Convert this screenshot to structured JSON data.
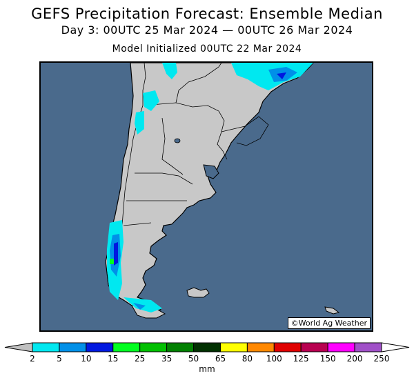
{
  "title": "GEFS Precipitation Forecast: Ensemble Median",
  "subtitle": "Day 3: 00UTC 25 Mar 2024 — 00UTC 26 Mar 2024",
  "init": "Model Initialized 00UTC 22 Mar 2024",
  "credit": "©World Ag Weather",
  "legend": {
    "units": "mm",
    "ticks": [
      "2",
      "5",
      "10",
      "15",
      "25",
      "35",
      "50",
      "65",
      "80",
      "100",
      "125",
      "150",
      "200",
      "250"
    ],
    "colors": [
      "#00e8f0",
      "#0090e8",
      "#0018e0",
      "#00ff20",
      "#00c000",
      "#008000",
      "#003000",
      "#ffff00",
      "#ff8800",
      "#e00000",
      "#b80050",
      "#ff00ff",
      "#a050c8"
    ],
    "under_color": "#c0c0c0",
    "over_color": "#ffffff"
  },
  "colors": {
    "ocean": "#4a6a8c",
    "land": "#c8c8c8"
  }
}
